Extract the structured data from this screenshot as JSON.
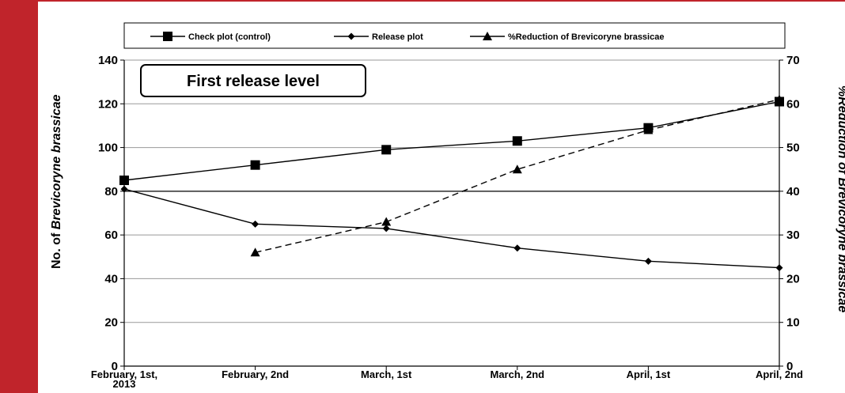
{
  "page": {
    "accent_color": "#c0242b"
  },
  "chart_data": {
    "type": "line",
    "categories": [
      "February, 1st, 2013",
      "February, 2nd",
      "March, 1st",
      "March, 2nd",
      "April, 1st",
      "April, 2nd"
    ],
    "category_lines": [
      [
        "February, 1st,",
        "2013"
      ],
      [
        "February, 2nd"
      ],
      [
        "March, 1st"
      ],
      [
        "March, 2nd"
      ],
      [
        "April, 1st"
      ],
      [
        "April, 2nd"
      ]
    ],
    "annotation": "First release level",
    "ylabel_left": [
      "No. of ",
      "Brevicoryne brassicae"
    ],
    "ylabel_right": "%Reduction of Brevicoryne brassicae",
    "ylim_left": [
      0,
      140
    ],
    "yticks_left": [
      0,
      20,
      40,
      60,
      80,
      100,
      120,
      140
    ],
    "ylim_right": [
      0,
      70
    ],
    "yticks_right": [
      0,
      10,
      20,
      30,
      40,
      50,
      60,
      70
    ],
    "grid": true,
    "legend_position": "top",
    "series": [
      {
        "name": "Check plot (control)",
        "marker": "square",
        "dash": "solid",
        "axis": "left",
        "values": [
          85,
          92,
          99,
          103,
          109,
          121
        ]
      },
      {
        "name": "Release plot",
        "marker": "diamond",
        "dash": "solid",
        "axis": "left",
        "values": [
          81,
          65,
          63,
          54,
          48,
          45
        ]
      },
      {
        "name": "%Reduction of Brevicoryne brassicae",
        "marker": "triangle",
        "dash": "dashed",
        "axis": "right",
        "values": [
          null,
          26,
          33,
          45,
          54,
          61
        ]
      }
    ]
  }
}
